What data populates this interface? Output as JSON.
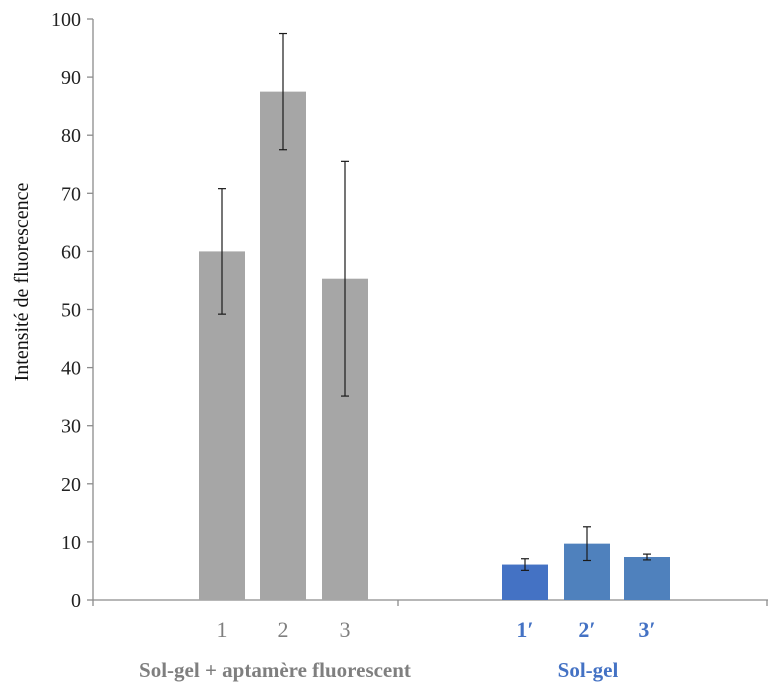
{
  "chart_data": {
    "type": "bar",
    "ylabel": "Intensité de fluorescence",
    "ylim": [
      0,
      100
    ],
    "ytick_step": 10,
    "grid": false,
    "groups": [
      {
        "label": "Sol-gel + aptamère fluorescent",
        "label_color": "#7f7f7f"
      },
      {
        "label": "Sol-gel",
        "label_color": "#4472c4"
      }
    ],
    "bars": [
      {
        "category": "1",
        "group": 0,
        "value": 60.0,
        "error": 10.8,
        "color": "#a6a6a6"
      },
      {
        "category": "2",
        "group": 0,
        "value": 87.5,
        "error": 10.0,
        "color": "#a6a6a6"
      },
      {
        "category": "3",
        "group": 0,
        "value": 55.3,
        "error": 20.2,
        "color": "#a6a6a6"
      },
      {
        "category": "1′",
        "group": 1,
        "value": 6.1,
        "error": 1.0,
        "color": "#4472c4"
      },
      {
        "category": "2′",
        "group": 1,
        "value": 9.7,
        "error": 2.9,
        "color": "#4f81bd"
      },
      {
        "category": "3′",
        "group": 1,
        "value": 7.4,
        "error": 0.5,
        "color": "#4f81bd"
      }
    ],
    "category_label_colors": [
      "#7f7f7f",
      "#7f7f7f",
      "#7f7f7f",
      "#4472c4",
      "#4472c4",
      "#4472c4"
    ]
  }
}
